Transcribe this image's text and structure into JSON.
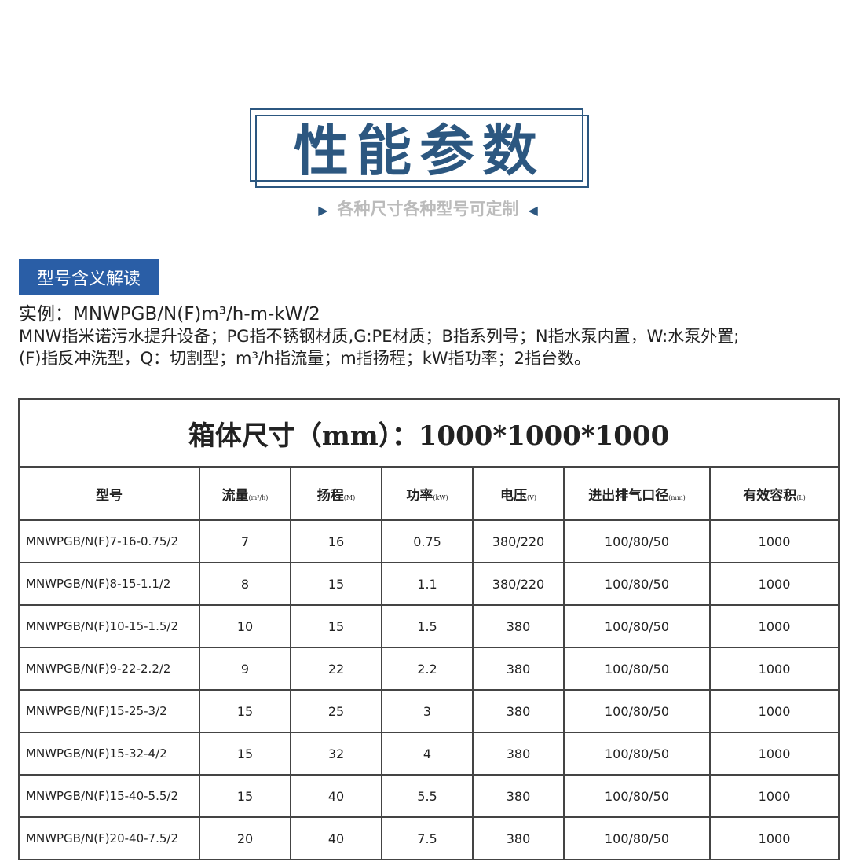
{
  "header": {
    "title": "性能参数",
    "subtitle": "各种尺寸各种型号可定制",
    "left_arrow": "▶",
    "right_arrow": "◀",
    "accent": "#2c5780"
  },
  "section": {
    "badge": "型号含义解读",
    "example": "实例：MNWPGB/N(F)m³/h-m-kW/2",
    "line1": "MNW指米诺污水提升设备；PG指不锈钢材质,G:PE材质；B指系列号；N指水泵内置，W:水泵外置;",
    "line2": "(F)指反冲洗型，Q：切割型；m³/h指流量；m指扬程；kW指功率；2指台数。"
  },
  "table": {
    "caption": "箱体尺寸（mm）：1000*1000*1000",
    "headers": [
      {
        "label": "型号",
        "unit": ""
      },
      {
        "label": "流量",
        "unit": "(m³/h)"
      },
      {
        "label": "扬程",
        "unit": "(M)"
      },
      {
        "label": "功率",
        "unit": "(kW)"
      },
      {
        "label": "电压",
        "unit": "(V)"
      },
      {
        "label": "进出排气口径",
        "unit": "(mm)"
      },
      {
        "label": "有效容积",
        "unit": "(L)"
      }
    ],
    "rows": [
      [
        "MNWPGB/N(F)7-16-0.75/2",
        "7",
        "16",
        "0.75",
        "380/220",
        "100/80/50",
        "1000"
      ],
      [
        "MNWPGB/N(F)8-15-1.1/2",
        "8",
        "15",
        "1.1",
        "380/220",
        "100/80/50",
        "1000"
      ],
      [
        "MNWPGB/N(F)10-15-1.5/2",
        "10",
        "15",
        "1.5",
        "380",
        "100/80/50",
        "1000"
      ],
      [
        "MNWPGB/N(F)9-22-2.2/2",
        "9",
        "22",
        "2.2",
        "380",
        "100/80/50",
        "1000"
      ],
      [
        "MNWPGB/N(F)15-25-3/2",
        "15",
        "25",
        "3",
        "380",
        "100/80/50",
        "1000"
      ],
      [
        "MNWPGB/N(F)15-32-4/2",
        "15",
        "32",
        "4",
        "380",
        "100/80/50",
        "1000"
      ],
      [
        "MNWPGB/N(F)15-40-5.5/2",
        "15",
        "40",
        "5.5",
        "380",
        "100/80/50",
        "1000"
      ],
      [
        "MNWPGB/N(F)20-40-7.5/2",
        "20",
        "40",
        "7.5",
        "380",
        "100/80/50",
        "1000"
      ]
    ]
  }
}
